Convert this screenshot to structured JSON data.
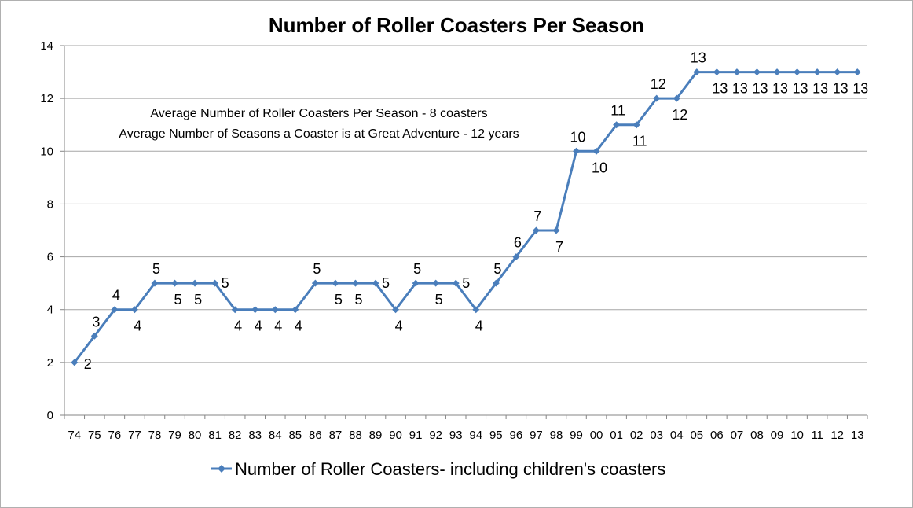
{
  "chart_data": {
    "type": "line",
    "title": "Number of Roller Coasters Per Season",
    "xlabel": "",
    "ylabel": "",
    "ylim": [
      0,
      14
    ],
    "yticks": [
      0,
      2,
      4,
      6,
      8,
      10,
      12,
      14
    ],
    "grid": true,
    "legend_position": "bottom",
    "categories": [
      "74",
      "75",
      "76",
      "77",
      "78",
      "79",
      "80",
      "81",
      "82",
      "83",
      "84",
      "85",
      "86",
      "87",
      "88",
      "89",
      "90",
      "91",
      "92",
      "93",
      "94",
      "95",
      "96",
      "97",
      "98",
      "99",
      "00",
      "01",
      "02",
      "03",
      "04",
      "05",
      "06",
      "07",
      "08",
      "09",
      "10",
      "11",
      "12",
      "13"
    ],
    "series": [
      {
        "name": "Number of Roller Coasters- including children's coasters",
        "color": "#4a7ebb",
        "values": [
          2,
          3,
          4,
          4,
          5,
          5,
          5,
          5,
          4,
          4,
          4,
          4,
          5,
          5,
          5,
          5,
          4,
          5,
          5,
          5,
          4,
          5,
          6,
          7,
          7,
          10,
          10,
          11,
          11,
          12,
          12,
          13,
          13,
          13,
          13,
          13,
          13,
          13,
          13,
          13
        ]
      }
    ],
    "annotations": [
      "Average Number of Roller Coasters Per Season - 8 coasters",
      "Average Number of Seasons a Coaster is at Great Adventure - 12 years"
    ]
  }
}
